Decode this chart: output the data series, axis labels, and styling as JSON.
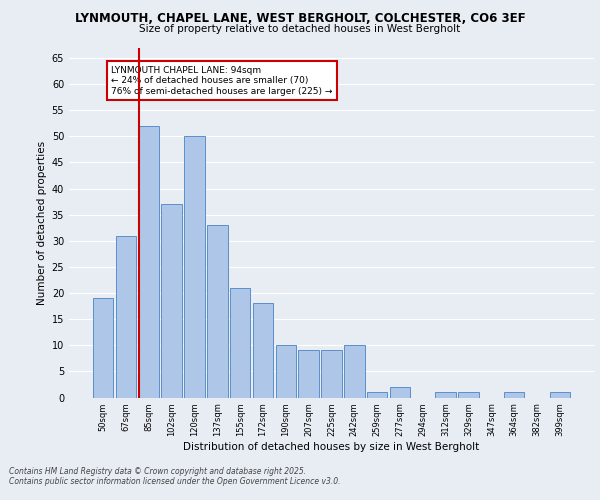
{
  "title_line1": "LYNMOUTH, CHAPEL LANE, WEST BERGHOLT, COLCHESTER, CO6 3EF",
  "title_line2": "Size of property relative to detached houses in West Bergholt",
  "xlabel": "Distribution of detached houses by size in West Bergholt",
  "ylabel": "Number of detached properties",
  "categories": [
    "50sqm",
    "67sqm",
    "85sqm",
    "102sqm",
    "120sqm",
    "137sqm",
    "155sqm",
    "172sqm",
    "190sqm",
    "207sqm",
    "225sqm",
    "242sqm",
    "259sqm",
    "277sqm",
    "294sqm",
    "312sqm",
    "329sqm",
    "347sqm",
    "364sqm",
    "382sqm",
    "399sqm"
  ],
  "values": [
    19,
    31,
    52,
    37,
    50,
    33,
    21,
    18,
    10,
    9,
    9,
    10,
    1,
    2,
    0,
    1,
    1,
    0,
    1,
    0,
    1
  ],
  "bar_color": "#aec6e8",
  "bar_edge_color": "#5b8fc9",
  "bg_color": "#e8edf4",
  "grid_color": "#ffffff",
  "annotation_text": "LYNMOUTH CHAPEL LANE: 94sqm\n← 24% of detached houses are smaller (70)\n76% of semi-detached houses are larger (225) →",
  "annotation_box_color": "#ffffff",
  "annotation_box_edgecolor": "#cc0000",
  "ylim": [
    0,
    67
  ],
  "yticks": [
    0,
    5,
    10,
    15,
    20,
    25,
    30,
    35,
    40,
    45,
    50,
    55,
    60,
    65
  ],
  "footer_line1": "Contains HM Land Registry data © Crown copyright and database right 2025.",
  "footer_line2": "Contains public sector information licensed under the Open Government Licence v3.0."
}
